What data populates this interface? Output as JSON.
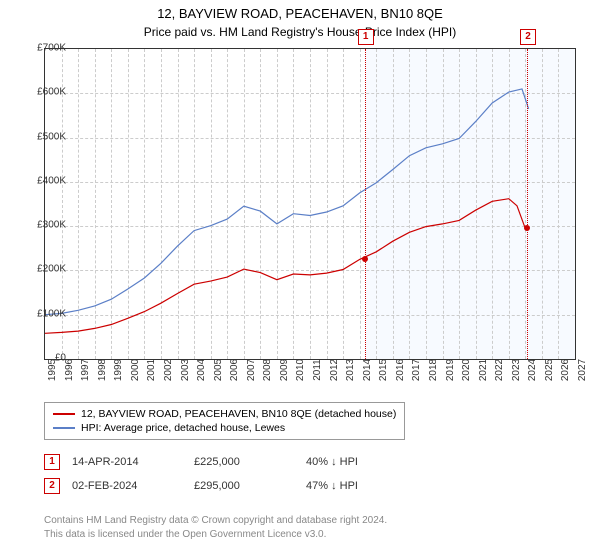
{
  "title": "12, BAYVIEW ROAD, PEACEHAVEN, BN10 8QE",
  "subtitle": "Price paid vs. HM Land Registry's House Price Index (HPI)",
  "chart": {
    "type": "line",
    "background_color": "#ffffff",
    "grid_color": "#cccccc",
    "border_color": "#333333",
    "x_axis": {
      "min": 1995,
      "max": 2027,
      "ticks": [
        1995,
        1996,
        1997,
        1998,
        1999,
        2000,
        2001,
        2002,
        2003,
        2004,
        2005,
        2006,
        2007,
        2008,
        2009,
        2010,
        2011,
        2012,
        2013,
        2014,
        2015,
        2016,
        2017,
        2018,
        2019,
        2020,
        2021,
        2022,
        2023,
        2024,
        2025,
        2026,
        2027
      ]
    },
    "y_axis": {
      "min": 0,
      "max": 700000,
      "ticks": [
        0,
        100000,
        200000,
        300000,
        400000,
        500000,
        600000,
        700000
      ],
      "tick_labels": [
        "£0",
        "£100K",
        "£200K",
        "£300K",
        "£400K",
        "£500K",
        "£600K",
        "£700K"
      ]
    },
    "series": [
      {
        "name": "12, BAYVIEW ROAD, PEACEHAVEN, BN10 8QE (detached house)",
        "color": "#cc0000",
        "points": [
          [
            1995,
            58000
          ],
          [
            1996,
            60000
          ],
          [
            1997,
            63000
          ],
          [
            1998,
            69000
          ],
          [
            1999,
            78000
          ],
          [
            2000,
            92000
          ],
          [
            2001,
            107000
          ],
          [
            2002,
            126000
          ],
          [
            2003,
            148000
          ],
          [
            2004,
            169000
          ],
          [
            2005,
            176000
          ],
          [
            2006,
            185000
          ],
          [
            2007,
            203000
          ],
          [
            2008,
            195000
          ],
          [
            2009,
            179000
          ],
          [
            2010,
            192000
          ],
          [
            2011,
            190000
          ],
          [
            2012,
            194000
          ],
          [
            2013,
            202000
          ],
          [
            2014,
            225000
          ],
          [
            2015,
            242000
          ],
          [
            2016,
            266000
          ],
          [
            2017,
            286000
          ],
          [
            2018,
            299000
          ],
          [
            2019,
            305000
          ],
          [
            2020,
            313000
          ],
          [
            2021,
            336000
          ],
          [
            2022,
            356000
          ],
          [
            2023,
            362000
          ],
          [
            2023.5,
            346000
          ],
          [
            2024,
            295000
          ]
        ]
      },
      {
        "name": "HPI: Average price, detached house, Lewes",
        "color": "#5b7fc7",
        "points": [
          [
            1995,
            100000
          ],
          [
            1996,
            103000
          ],
          [
            1997,
            110000
          ],
          [
            1998,
            120000
          ],
          [
            1999,
            135000
          ],
          [
            2000,
            158000
          ],
          [
            2001,
            183000
          ],
          [
            2002,
            216000
          ],
          [
            2003,
            255000
          ],
          [
            2004,
            290000
          ],
          [
            2005,
            301000
          ],
          [
            2006,
            316000
          ],
          [
            2007,
            345000
          ],
          [
            2008,
            334000
          ],
          [
            2009,
            305000
          ],
          [
            2010,
            328000
          ],
          [
            2011,
            324000
          ],
          [
            2012,
            332000
          ],
          [
            2013,
            346000
          ],
          [
            2014,
            375000
          ],
          [
            2015,
            398000
          ],
          [
            2016,
            428000
          ],
          [
            2017,
            459000
          ],
          [
            2018,
            477000
          ],
          [
            2019,
            486000
          ],
          [
            2020,
            498000
          ],
          [
            2021,
            536000
          ],
          [
            2022,
            578000
          ],
          [
            2023,
            603000
          ],
          [
            2023.8,
            610000
          ],
          [
            2024.2,
            565000
          ]
        ]
      }
    ],
    "markers": [
      {
        "label": "1",
        "x": 2014.3,
        "y": 225000,
        "box_y_top": true
      },
      {
        "label": "2",
        "x": 2024.1,
        "y": 295000,
        "box_y_top": true
      }
    ],
    "shade_from_x": 2014.3
  },
  "legend": {
    "rows": [
      {
        "color": "#cc0000",
        "label": "12, BAYVIEW ROAD, PEACEHAVEN, BN10 8QE (detached house)"
      },
      {
        "color": "#5b7fc7",
        "label": "HPI: Average price, detached house, Lewes"
      }
    ]
  },
  "data_table": {
    "rows": [
      {
        "n": "1",
        "date": "14-APR-2014",
        "price": "£225,000",
        "pct": "40%",
        "arrow": "↓",
        "vs": "HPI"
      },
      {
        "n": "2",
        "date": "02-FEB-2024",
        "price": "£295,000",
        "pct": "47%",
        "arrow": "↓",
        "vs": "HPI"
      }
    ]
  },
  "footer": {
    "line1": "Contains HM Land Registry data © Crown copyright and database right 2024.",
    "line2": "This data is licensed under the Open Government Licence v3.0."
  }
}
